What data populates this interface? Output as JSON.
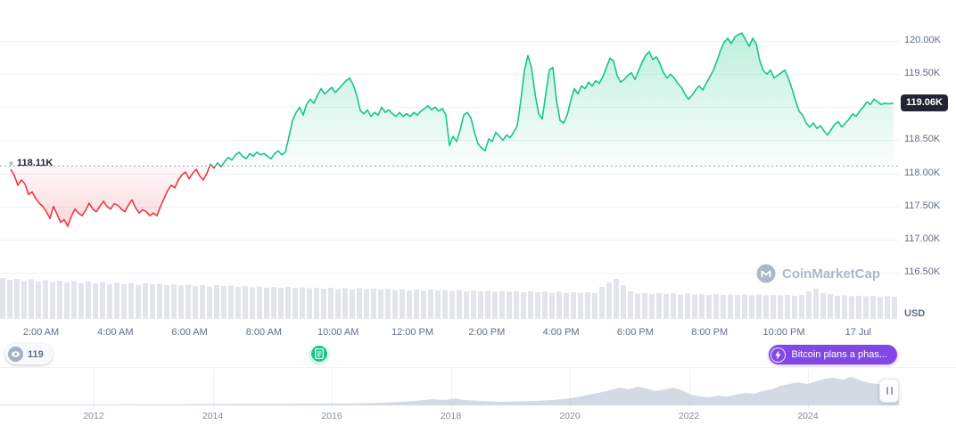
{
  "meta": {
    "watermark": "CoinMarketCap"
  },
  "colors": {
    "up": "#16c784",
    "down": "#ea3943",
    "grid": "#eff2f5",
    "axis_text": "#616e85",
    "badge_bg": "#222531",
    "badge_text": "#ffffff",
    "volume_bar": "#e2e5ec",
    "annotation_purple": "#8247e5",
    "timeline_fill": "#cdd3df",
    "baseline_dash": "#97a2b8"
  },
  "annotations": {
    "watch_count": "119",
    "headline": "Bitcoin plans a phas..."
  },
  "timeline": {
    "years": [
      "2012",
      "2014",
      "2016",
      "2018",
      "2020",
      "2022",
      "2024"
    ],
    "minichart": [
      [
        0,
        1
      ],
      [
        40,
        1
      ],
      [
        80,
        1
      ],
      [
        120,
        1
      ],
      [
        160,
        1.2
      ],
      [
        200,
        1.2
      ],
      [
        240,
        1.4
      ],
      [
        280,
        1.6
      ],
      [
        320,
        1.8
      ],
      [
        360,
        2
      ],
      [
        400,
        2.2
      ],
      [
        430,
        3
      ],
      [
        450,
        4
      ],
      [
        470,
        5.5
      ],
      [
        485,
        7
      ],
      [
        500,
        6
      ],
      [
        510,
        8
      ],
      [
        520,
        6
      ],
      [
        540,
        5
      ],
      [
        560,
        4
      ],
      [
        580,
        4.5
      ],
      [
        600,
        5
      ],
      [
        620,
        6
      ],
      [
        640,
        8
      ],
      [
        660,
        12
      ],
      [
        680,
        16
      ],
      [
        695,
        20
      ],
      [
        705,
        18
      ],
      [
        715,
        21
      ],
      [
        725,
        19
      ],
      [
        735,
        16
      ],
      [
        745,
        18
      ],
      [
        755,
        20
      ],
      [
        765,
        17
      ],
      [
        775,
        12
      ],
      [
        785,
        10
      ],
      [
        795,
        9
      ],
      [
        805,
        11
      ],
      [
        815,
        10
      ],
      [
        825,
        12
      ],
      [
        835,
        14
      ],
      [
        845,
        13
      ],
      [
        855,
        16
      ],
      [
        865,
        18
      ],
      [
        875,
        22
      ],
      [
        885,
        24
      ],
      [
        895,
        26
      ],
      [
        905,
        24
      ],
      [
        915,
        27
      ],
      [
        925,
        30
      ],
      [
        935,
        31
      ],
      [
        945,
        29
      ],
      [
        955,
        32
      ],
      [
        965,
        28
      ],
      [
        975,
        25
      ],
      [
        985,
        24
      ],
      [
        995,
        23
      ],
      [
        1008,
        23
      ]
    ]
  },
  "chart_data": {
    "type": "area",
    "subtype": "baseline",
    "unit": "thousand USD",
    "y_axis_unit": "USD",
    "ylim": [
      116500,
      120000
    ],
    "grid": "horizontal",
    "baseline": {
      "value": 118110,
      "label": "118.11K"
    },
    "current": {
      "value": 119060,
      "label": "119.06K"
    },
    "y_ticks": [
      {
        "label": "120.00K",
        "value": 120000
      },
      {
        "label": "119.50K",
        "value": 119500
      },
      {
        "label": "118.50K",
        "value": 118500
      },
      {
        "label": "118.00K",
        "value": 118000
      },
      {
        "label": "117.50K",
        "value": 117500
      },
      {
        "label": "117.00K",
        "value": 117000
      },
      {
        "label": "116.50K",
        "value": 116500
      }
    ],
    "x_ticks": [
      "2:00 AM",
      "4:00 AM",
      "6:00 AM",
      "8:00 AM",
      "10:00 AM",
      "12:00 PM",
      "2:00 PM",
      "4:00 PM",
      "6:00 PM",
      "8:00 PM",
      "10:00 PM",
      "17 Jul"
    ],
    "series": [
      [
        12,
        118.06
      ],
      [
        16,
        117.97
      ],
      [
        20,
        117.82
      ],
      [
        24,
        117.9
      ],
      [
        28,
        117.84
      ],
      [
        32,
        117.68
      ],
      [
        36,
        117.72
      ],
      [
        40,
        117.62
      ],
      [
        44,
        117.55
      ],
      [
        48,
        117.5
      ],
      [
        52,
        117.42
      ],
      [
        56,
        117.32
      ],
      [
        60,
        117.5
      ],
      [
        64,
        117.38
      ],
      [
        68,
        117.26
      ],
      [
        72,
        117.3
      ],
      [
        76,
        117.2
      ],
      [
        80,
        117.35
      ],
      [
        84,
        117.46
      ],
      [
        88,
        117.4
      ],
      [
        92,
        117.36
      ],
      [
        96,
        117.44
      ],
      [
        100,
        117.55
      ],
      [
        104,
        117.46
      ],
      [
        108,
        117.42
      ],
      [
        112,
        117.5
      ],
      [
        116,
        117.58
      ],
      [
        120,
        117.5
      ],
      [
        124,
        117.46
      ],
      [
        128,
        117.54
      ],
      [
        132,
        117.52
      ],
      [
        136,
        117.46
      ],
      [
        140,
        117.42
      ],
      [
        144,
        117.52
      ],
      [
        148,
        117.6
      ],
      [
        152,
        117.48
      ],
      [
        156,
        117.4
      ],
      [
        160,
        117.45
      ],
      [
        164,
        117.42
      ],
      [
        168,
        117.36
      ],
      [
        172,
        117.4
      ],
      [
        176,
        117.36
      ],
      [
        180,
        117.5
      ],
      [
        184,
        117.62
      ],
      [
        188,
        117.74
      ],
      [
        192,
        117.82
      ],
      [
        196,
        117.78
      ],
      [
        200,
        117.9
      ],
      [
        204,
        117.98
      ],
      [
        208,
        118.02
      ],
      [
        212,
        117.92
      ],
      [
        216,
        118.0
      ],
      [
        220,
        118.06
      ],
      [
        224,
        117.96
      ],
      [
        228,
        117.9
      ],
      [
        232,
        118.0
      ],
      [
        236,
        118.14
      ],
      [
        240,
        118.08
      ],
      [
        244,
        118.16
      ],
      [
        248,
        118.1
      ],
      [
        252,
        118.18
      ],
      [
        256,
        118.24
      ],
      [
        260,
        118.2
      ],
      [
        264,
        118.28
      ],
      [
        268,
        118.32
      ],
      [
        272,
        118.26
      ],
      [
        276,
        118.22
      ],
      [
        280,
        118.3
      ],
      [
        284,
        118.26
      ],
      [
        288,
        118.32
      ],
      [
        292,
        118.28
      ],
      [
        296,
        118.3
      ],
      [
        300,
        118.26
      ],
      [
        304,
        118.22
      ],
      [
        308,
        118.3
      ],
      [
        312,
        118.34
      ],
      [
        316,
        118.28
      ],
      [
        320,
        118.32
      ],
      [
        324,
        118.55
      ],
      [
        328,
        118.8
      ],
      [
        332,
        118.92
      ],
      [
        336,
        119.0
      ],
      [
        340,
        118.88
      ],
      [
        344,
        119.05
      ],
      [
        348,
        119.12
      ],
      [
        352,
        119.06
      ],
      [
        356,
        119.18
      ],
      [
        360,
        119.28
      ],
      [
        364,
        119.2
      ],
      [
        368,
        119.25
      ],
      [
        372,
        119.3
      ],
      [
        376,
        119.22
      ],
      [
        380,
        119.28
      ],
      [
        384,
        119.34
      ],
      [
        388,
        119.4
      ],
      [
        392,
        119.44
      ],
      [
        396,
        119.34
      ],
      [
        400,
        119.18
      ],
      [
        404,
        118.95
      ],
      [
        408,
        118.9
      ],
      [
        412,
        118.96
      ],
      [
        416,
        118.86
      ],
      [
        420,
        118.92
      ],
      [
        424,
        118.88
      ],
      [
        428,
        119.0
      ],
      [
        432,
        118.92
      ],
      [
        436,
        118.96
      ],
      [
        440,
        118.9
      ],
      [
        444,
        118.86
      ],
      [
        448,
        118.92
      ],
      [
        452,
        118.86
      ],
      [
        456,
        118.9
      ],
      [
        460,
        118.86
      ],
      [
        464,
        118.92
      ],
      [
        468,
        118.88
      ],
      [
        472,
        118.94
      ],
      [
        476,
        118.98
      ],
      [
        480,
        119.02
      ],
      [
        484,
        118.96
      ],
      [
        488,
        119.0
      ],
      [
        492,
        118.94
      ],
      [
        496,
        118.98
      ],
      [
        500,
        118.88
      ],
      [
        504,
        118.42
      ],
      [
        508,
        118.56
      ],
      [
        512,
        118.48
      ],
      [
        516,
        118.66
      ],
      [
        520,
        118.88
      ],
      [
        524,
        118.92
      ],
      [
        528,
        118.84
      ],
      [
        532,
        118.62
      ],
      [
        536,
        118.45
      ],
      [
        540,
        118.38
      ],
      [
        544,
        118.34
      ],
      [
        548,
        118.52
      ],
      [
        552,
        118.48
      ],
      [
        556,
        118.62
      ],
      [
        560,
        118.56
      ],
      [
        564,
        118.5
      ],
      [
        568,
        118.58
      ],
      [
        572,
        118.54
      ],
      [
        576,
        118.62
      ],
      [
        580,
        118.72
      ],
      [
        584,
        119.1
      ],
      [
        588,
        119.55
      ],
      [
        592,
        119.78
      ],
      [
        596,
        119.6
      ],
      [
        600,
        119.2
      ],
      [
        604,
        118.9
      ],
      [
        608,
        118.82
      ],
      [
        612,
        119.2
      ],
      [
        616,
        119.56
      ],
      [
        620,
        119.6
      ],
      [
        624,
        119.1
      ],
      [
        628,
        118.8
      ],
      [
        632,
        118.76
      ],
      [
        636,
        118.88
      ],
      [
        640,
        119.1
      ],
      [
        644,
        119.28
      ],
      [
        648,
        119.2
      ],
      [
        652,
        119.32
      ],
      [
        656,
        119.28
      ],
      [
        660,
        119.38
      ],
      [
        664,
        119.32
      ],
      [
        668,
        119.4
      ],
      [
        672,
        119.36
      ],
      [
        676,
        119.46
      ],
      [
        680,
        119.6
      ],
      [
        684,
        119.74
      ],
      [
        688,
        119.7
      ],
      [
        692,
        119.48
      ],
      [
        696,
        119.38
      ],
      [
        700,
        119.42
      ],
      [
        704,
        119.48
      ],
      [
        708,
        119.52
      ],
      [
        712,
        119.42
      ],
      [
        716,
        119.55
      ],
      [
        720,
        119.68
      ],
      [
        724,
        119.78
      ],
      [
        728,
        119.84
      ],
      [
        732,
        119.72
      ],
      [
        736,
        119.76
      ],
      [
        740,
        119.66
      ],
      [
        744,
        119.52
      ],
      [
        748,
        119.44
      ],
      [
        752,
        119.5
      ],
      [
        756,
        119.44
      ],
      [
        760,
        119.36
      ],
      [
        764,
        119.3
      ],
      [
        768,
        119.2
      ],
      [
        772,
        119.12
      ],
      [
        776,
        119.18
      ],
      [
        780,
        119.26
      ],
      [
        784,
        119.32
      ],
      [
        788,
        119.26
      ],
      [
        792,
        119.36
      ],
      [
        796,
        119.46
      ],
      [
        800,
        119.56
      ],
      [
        804,
        119.7
      ],
      [
        808,
        119.86
      ],
      [
        812,
        119.98
      ],
      [
        816,
        120.04
      ],
      [
        820,
        119.96
      ],
      [
        824,
        120.06
      ],
      [
        828,
        120.1
      ],
      [
        832,
        120.12
      ],
      [
        836,
        120.02
      ],
      [
        840,
        119.92
      ],
      [
        844,
        120.04
      ],
      [
        848,
        119.96
      ],
      [
        852,
        119.7
      ],
      [
        856,
        119.55
      ],
      [
        860,
        119.5
      ],
      [
        864,
        119.56
      ],
      [
        868,
        119.44
      ],
      [
        872,
        119.48
      ],
      [
        876,
        119.52
      ],
      [
        880,
        119.56
      ],
      [
        884,
        119.44
      ],
      [
        888,
        119.28
      ],
      [
        892,
        119.1
      ],
      [
        896,
        118.94
      ],
      [
        900,
        118.88
      ],
      [
        904,
        118.76
      ],
      [
        908,
        118.7
      ],
      [
        912,
        118.76
      ],
      [
        916,
        118.68
      ],
      [
        920,
        118.72
      ],
      [
        924,
        118.64
      ],
      [
        928,
        118.58
      ],
      [
        932,
        118.66
      ],
      [
        936,
        118.74
      ],
      [
        940,
        118.78
      ],
      [
        944,
        118.7
      ],
      [
        948,
        118.76
      ],
      [
        952,
        118.82
      ],
      [
        956,
        118.9
      ],
      [
        960,
        118.86
      ],
      [
        964,
        118.94
      ],
      [
        968,
        119.0
      ],
      [
        972,
        119.08
      ],
      [
        976,
        119.04
      ],
      [
        980,
        119.12
      ],
      [
        984,
        119.08
      ],
      [
        988,
        119.04
      ],
      [
        992,
        119.06
      ],
      [
        996,
        119.05
      ],
      [
        1002,
        119.06
      ]
    ],
    "volume": [
      92,
      88,
      90,
      85,
      89,
      84,
      87,
      83,
      86,
      82,
      85,
      81,
      84,
      80,
      83,
      79,
      82,
      78,
      81,
      77,
      80,
      78,
      79,
      76,
      78,
      75,
      77,
      74,
      76,
      73,
      76,
      74,
      75,
      72,
      74,
      71,
      73,
      70,
      72,
      70,
      72,
      70,
      71,
      69,
      70,
      68,
      70,
      67,
      69,
      66,
      69,
      67,
      68,
      66,
      67,
      65,
      67,
      64,
      66,
      64,
      66,
      64,
      65,
      63,
      65,
      62,
      64,
      62,
      63,
      61,
      63,
      61,
      62,
      60,
      62,
      60,
      61,
      59,
      61,
      59,
      60,
      59,
      60,
      58,
      72,
      82,
      90,
      76,
      62,
      57,
      58,
      56,
      58,
      56,
      57,
      55,
      57,
      55,
      56,
      54,
      56,
      54,
      55,
      54,
      55,
      53,
      55,
      53,
      54,
      53,
      54,
      52,
      54,
      62,
      68,
      58,
      56,
      52,
      53,
      51,
      52,
      51,
      52,
      50,
      51,
      50
    ]
  }
}
